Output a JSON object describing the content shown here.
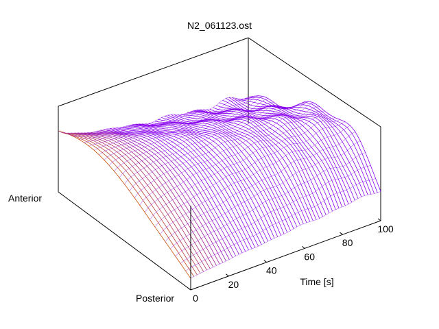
{
  "chart_data": {
    "type": "surface",
    "title": "N2_061123.ost",
    "xlabel": "Time [s]",
    "y_top_label": "Anterior",
    "y_bottom_label": "Posterior",
    "xlim": [
      0,
      100
    ],
    "x_ticks": [
      "0",
      "20",
      "40",
      "60",
      "80",
      "100"
    ],
    "y_range": [
      0,
      1
    ],
    "z_range": [
      0,
      1
    ],
    "grid": false,
    "colors": {
      "early": "#c85000",
      "late": "#8800ee",
      "axis": "#000000"
    },
    "surface_model": {
      "description_of_values": "relative height along the anterior-posterior axis per time slice",
      "time_samples": 60,
      "position_samples": 26
    }
  }
}
